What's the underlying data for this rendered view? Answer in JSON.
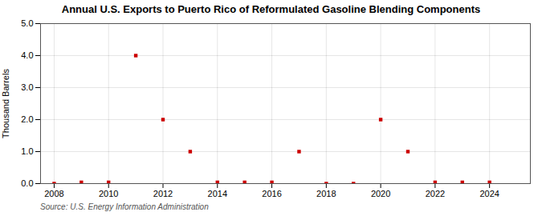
{
  "chart_data": {
    "type": "scatter",
    "title": "Annual U.S. Exports to Puerto Rico of Reformulated Gasoline Blending Components",
    "ylabel": "Thousand Barrels",
    "source": "Source: U.S. Energy Information Administration",
    "x": [
      2008,
      2009,
      2010,
      2011,
      2012,
      2013,
      2014,
      2015,
      2016,
      2017,
      2018,
      2019,
      2020,
      2021,
      2022,
      2023,
      2024
    ],
    "values": [
      0.0,
      0.04,
      0.04,
      4.0,
      2.0,
      1.0,
      0.04,
      0.04,
      0.04,
      1.0,
      0.0,
      0.0,
      2.0,
      1.0,
      0.04,
      0.04,
      0.04
    ],
    "color": "#cc0000",
    "marker": "square",
    "xlim": [
      2007.5,
      2025.5
    ],
    "xticks": [
      2008,
      2010,
      2012,
      2014,
      2016,
      2018,
      2020,
      2022,
      2024
    ],
    "ylim": [
      0.0,
      5.0
    ],
    "yticks": [
      {
        "value": 0.0,
        "label": "0.0"
      },
      {
        "value": 1.0,
        "label": "1.0"
      },
      {
        "value": 2.0,
        "label": "2.0"
      },
      {
        "value": 3.0,
        "label": "3.0"
      },
      {
        "value": 4.0,
        "label": "4.0"
      },
      {
        "value": 5.0,
        "label": "5.0"
      }
    ],
    "grid": true
  }
}
